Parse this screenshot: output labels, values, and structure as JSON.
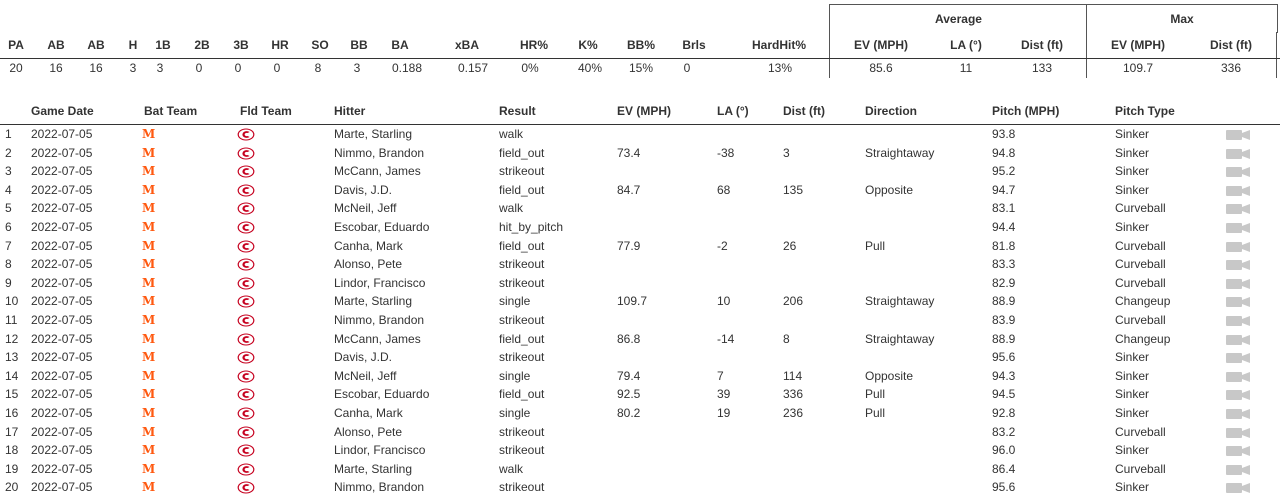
{
  "summary": {
    "groups": {
      "average": "Average",
      "max": "Max"
    },
    "headers": [
      "PA",
      "AB",
      "AB",
      "H",
      "1B",
      "2B",
      "3B",
      "HR",
      "SO",
      "BB",
      "BA",
      "xBA",
      "HR%",
      "K%",
      "BB%",
      "Brls",
      "HardHit%",
      "EV (MPH)",
      "LA (°)",
      "Dist (ft)",
      "EV (MPH)",
      "Dist (ft)"
    ],
    "values": [
      "20",
      "16",
      "16",
      "3",
      "3",
      "0",
      "0",
      "0",
      "8",
      "3",
      "0.188",
      "0.157",
      "0%",
      "40%",
      "15%",
      "0",
      "13%",
      "85.6",
      "11",
      "133",
      "109.7",
      "336"
    ]
  },
  "log": {
    "headers": {
      "game_date": "Game Date",
      "bat_team": "Bat Team",
      "fld_team": "Fld Team",
      "hitter": "Hitter",
      "result": "Result",
      "ev": "EV (MPH)",
      "la": "LA (°)",
      "dist": "Dist (ft)",
      "direction": "Direction",
      "pitch_mph": "Pitch (MPH)",
      "pitch_type": "Pitch Type"
    },
    "bat_team_icon": "mets-logo-icon",
    "fld_team_icon": "reds-logo-icon",
    "video_icon": "video-camera-icon",
    "colors": {
      "mets": "#ff5910",
      "reds": "#c6011f",
      "camera": "#c8c8c8"
    },
    "rows": [
      {
        "n": "1",
        "date": "2022-07-05",
        "hitter": "Marte, Starling",
        "result": "walk",
        "ev": "",
        "la": "",
        "dist": "",
        "dir": "",
        "mph": "93.8",
        "type": "Sinker"
      },
      {
        "n": "2",
        "date": "2022-07-05",
        "hitter": "Nimmo, Brandon",
        "result": "field_out",
        "ev": "73.4",
        "la": "-38",
        "dist": "3",
        "dir": "Straightaway",
        "mph": "94.8",
        "type": "Sinker"
      },
      {
        "n": "3",
        "date": "2022-07-05",
        "hitter": "McCann, James",
        "result": "strikeout",
        "ev": "",
        "la": "",
        "dist": "",
        "dir": "",
        "mph": "95.2",
        "type": "Sinker"
      },
      {
        "n": "4",
        "date": "2022-07-05",
        "hitter": "Davis, J.D.",
        "result": "field_out",
        "ev": "84.7",
        "la": "68",
        "dist": "135",
        "dir": "Opposite",
        "mph": "94.7",
        "type": "Sinker"
      },
      {
        "n": "5",
        "date": "2022-07-05",
        "hitter": "McNeil, Jeff",
        "result": "walk",
        "ev": "",
        "la": "",
        "dist": "",
        "dir": "",
        "mph": "83.1",
        "type": "Curveball"
      },
      {
        "n": "6",
        "date": "2022-07-05",
        "hitter": "Escobar, Eduardo",
        "result": "hit_by_pitch",
        "ev": "",
        "la": "",
        "dist": "",
        "dir": "",
        "mph": "94.4",
        "type": "Sinker"
      },
      {
        "n": "7",
        "date": "2022-07-05",
        "hitter": "Canha, Mark",
        "result": "field_out",
        "ev": "77.9",
        "la": "-2",
        "dist": "26",
        "dir": "Pull",
        "mph": "81.8",
        "type": "Curveball"
      },
      {
        "n": "8",
        "date": "2022-07-05",
        "hitter": "Alonso, Pete",
        "result": "strikeout",
        "ev": "",
        "la": "",
        "dist": "",
        "dir": "",
        "mph": "83.3",
        "type": "Curveball"
      },
      {
        "n": "9",
        "date": "2022-07-05",
        "hitter": "Lindor, Francisco",
        "result": "strikeout",
        "ev": "",
        "la": "",
        "dist": "",
        "dir": "",
        "mph": "82.9",
        "type": "Curveball"
      },
      {
        "n": "10",
        "date": "2022-07-05",
        "hitter": "Marte, Starling",
        "result": "single",
        "ev": "109.7",
        "la": "10",
        "dist": "206",
        "dir": "Straightaway",
        "mph": "88.9",
        "type": "Changeup"
      },
      {
        "n": "11",
        "date": "2022-07-05",
        "hitter": "Nimmo, Brandon",
        "result": "strikeout",
        "ev": "",
        "la": "",
        "dist": "",
        "dir": "",
        "mph": "83.9",
        "type": "Curveball"
      },
      {
        "n": "12",
        "date": "2022-07-05",
        "hitter": "McCann, James",
        "result": "field_out",
        "ev": "86.8",
        "la": "-14",
        "dist": "8",
        "dir": "Straightaway",
        "mph": "88.9",
        "type": "Changeup"
      },
      {
        "n": "13",
        "date": "2022-07-05",
        "hitter": "Davis, J.D.",
        "result": "strikeout",
        "ev": "",
        "la": "",
        "dist": "",
        "dir": "",
        "mph": "95.6",
        "type": "Sinker"
      },
      {
        "n": "14",
        "date": "2022-07-05",
        "hitter": "McNeil, Jeff",
        "result": "single",
        "ev": "79.4",
        "la": "7",
        "dist": "114",
        "dir": "Opposite",
        "mph": "94.3",
        "type": "Sinker"
      },
      {
        "n": "15",
        "date": "2022-07-05",
        "hitter": "Escobar, Eduardo",
        "result": "field_out",
        "ev": "92.5",
        "la": "39",
        "dist": "336",
        "dir": "Pull",
        "mph": "94.5",
        "type": "Sinker"
      },
      {
        "n": "16",
        "date": "2022-07-05",
        "hitter": "Canha, Mark",
        "result": "single",
        "ev": "80.2",
        "la": "19",
        "dist": "236",
        "dir": "Pull",
        "mph": "92.8",
        "type": "Sinker"
      },
      {
        "n": "17",
        "date": "2022-07-05",
        "hitter": "Alonso, Pete",
        "result": "strikeout",
        "ev": "",
        "la": "",
        "dist": "",
        "dir": "",
        "mph": "83.2",
        "type": "Curveball"
      },
      {
        "n": "18",
        "date": "2022-07-05",
        "hitter": "Lindor, Francisco",
        "result": "strikeout",
        "ev": "",
        "la": "",
        "dist": "",
        "dir": "",
        "mph": "96.0",
        "type": "Sinker"
      },
      {
        "n": "19",
        "date": "2022-07-05",
        "hitter": "Marte, Starling",
        "result": "walk",
        "ev": "",
        "la": "",
        "dist": "",
        "dir": "",
        "mph": "86.4",
        "type": "Curveball"
      },
      {
        "n": "20",
        "date": "2022-07-05",
        "hitter": "Nimmo, Brandon",
        "result": "strikeout",
        "ev": "",
        "la": "",
        "dist": "",
        "dir": "",
        "mph": "95.6",
        "type": "Sinker"
      }
    ]
  }
}
